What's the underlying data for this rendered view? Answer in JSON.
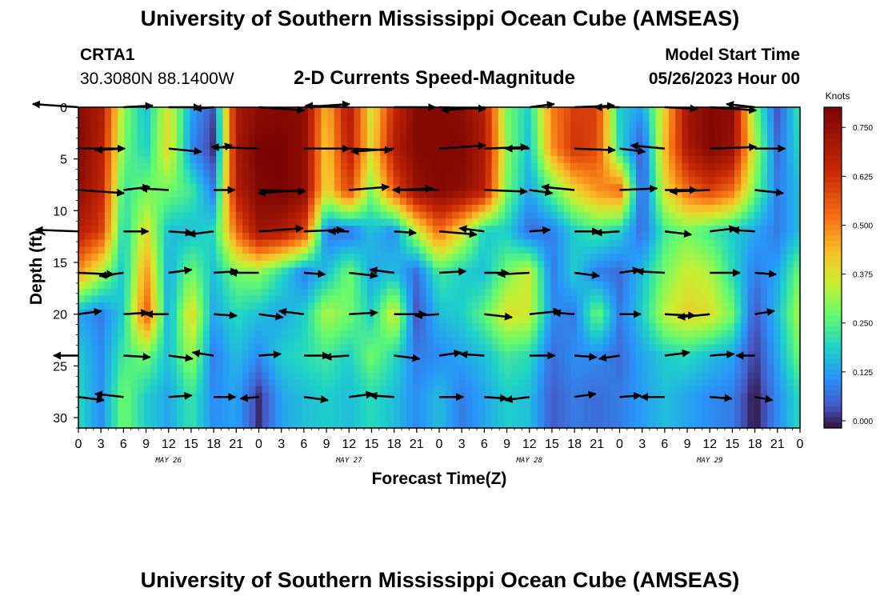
{
  "page": {
    "title_top": "University of Southern Mississippi Ocean Cube (AMSEAS)",
    "title_bottom": "University of Southern Mississippi Ocean Cube (AMSEAS)",
    "station_id": "CRTA1",
    "station_coords": "30.3080N  88.1400W",
    "plot_title": "2-D Currents Speed-Magnitude",
    "model_start_label": "Model Start Time",
    "model_start_value": "05/26/2023 Hour 00"
  },
  "chart_data": {
    "type": "heatmap",
    "title": "2-D Currents Speed-Magnitude",
    "xlabel": "Forecast Time(Z)",
    "ylabel": "Depth (ft)",
    "colorbar_label": "Knots",
    "x_hours_range": [
      0,
      96
    ],
    "y_range": [
      0,
      31
    ],
    "y_ticks": [
      0,
      5,
      10,
      15,
      20,
      25,
      30
    ],
    "x_tick_labels": [
      "0",
      "3",
      "6",
      "9",
      "12",
      "15",
      "18",
      "21",
      "0",
      "3",
      "6",
      "9",
      "12",
      "15",
      "18",
      "21",
      "0",
      "3",
      "6",
      "9",
      "12",
      "15",
      "18",
      "21",
      "0",
      "3",
      "6",
      "9",
      "12",
      "15",
      "18",
      "21",
      "0"
    ],
    "date_labels": [
      {
        "text": "MAY 26",
        "hour": 12
      },
      {
        "text": "MAY 27",
        "hour": 36
      },
      {
        "text": "MAY 28",
        "hour": 60
      },
      {
        "text": "MAY 29",
        "hour": 84
      }
    ],
    "colorbar_ticks": [
      {
        "value": 0.0,
        "label": "0.000"
      },
      {
        "value": 0.125,
        "label": "0.125"
      },
      {
        "value": 0.25,
        "label": "0.250"
      },
      {
        "value": 0.375,
        "label": "0.375"
      },
      {
        "value": 0.5,
        "label": "0.500"
      },
      {
        "value": 0.625,
        "label": "0.625"
      },
      {
        "value": 0.75,
        "label": "0.750"
      }
    ],
    "color_range": [
      0,
      0.82
    ],
    "depth_levels": [
      0,
      4,
      8,
      12,
      16,
      20,
      24,
      28
    ],
    "hour_columns": [
      0,
      3,
      6,
      9,
      12,
      15,
      18,
      21,
      24,
      27,
      30,
      33,
      36,
      39,
      42,
      45,
      48,
      51,
      54,
      57,
      60,
      63,
      66,
      69,
      72,
      75,
      78,
      81,
      84,
      87,
      90,
      93,
      96
    ],
    "speed_grid": [
      [
        0.78,
        0.72,
        0.32,
        0.18,
        0.4,
        0.15,
        0.05,
        0.72,
        0.78,
        0.8,
        0.78,
        0.45,
        0.72,
        0.38,
        0.66,
        0.8,
        0.8,
        0.78,
        0.7,
        0.3,
        0.2,
        0.52,
        0.62,
        0.62,
        0.2,
        0.14,
        0.42,
        0.74,
        0.8,
        0.78,
        0.3,
        0.05,
        0.25
      ],
      [
        0.8,
        0.7,
        0.3,
        0.2,
        0.42,
        0.12,
        0.02,
        0.72,
        0.82,
        0.82,
        0.78,
        0.42,
        0.7,
        0.4,
        0.7,
        0.8,
        0.8,
        0.8,
        0.72,
        0.32,
        0.18,
        0.5,
        0.64,
        0.6,
        0.22,
        0.05,
        0.45,
        0.72,
        0.8,
        0.76,
        0.35,
        0.08,
        0.22
      ],
      [
        0.78,
        0.68,
        0.24,
        0.3,
        0.3,
        0.25,
        0.1,
        0.7,
        0.8,
        0.82,
        0.78,
        0.4,
        0.62,
        0.3,
        0.58,
        0.76,
        0.8,
        0.78,
        0.7,
        0.3,
        0.15,
        0.28,
        0.42,
        0.5,
        0.55,
        0.05,
        0.4,
        0.55,
        0.62,
        0.55,
        0.3,
        0.1,
        0.18
      ],
      [
        0.7,
        0.62,
        0.2,
        0.4,
        0.18,
        0.18,
        0.22,
        0.55,
        0.74,
        0.72,
        0.62,
        0.1,
        0.08,
        0.18,
        0.12,
        0.36,
        0.55,
        0.4,
        0.2,
        0.2,
        0.08,
        0.1,
        0.2,
        0.25,
        0.2,
        0.08,
        0.25,
        0.3,
        0.25,
        0.2,
        0.15,
        0.1,
        0.18
      ],
      [
        0.5,
        0.35,
        0.18,
        0.5,
        0.15,
        0.3,
        0.18,
        0.3,
        0.32,
        0.22,
        0.1,
        0.18,
        0.3,
        0.15,
        0.18,
        0.08,
        0.25,
        0.2,
        0.18,
        0.3,
        0.38,
        0.1,
        0.2,
        0.1,
        0.08,
        0.18,
        0.3,
        0.38,
        0.35,
        0.22,
        0.1,
        0.15,
        0.3
      ],
      [
        0.15,
        0.1,
        0.2,
        0.58,
        0.15,
        0.42,
        0.15,
        0.22,
        0.18,
        0.15,
        0.2,
        0.35,
        0.3,
        0.2,
        0.4,
        0.05,
        0.18,
        0.2,
        0.28,
        0.4,
        0.38,
        0.12,
        0.1,
        0.3,
        0.1,
        0.2,
        0.36,
        0.42,
        0.4,
        0.3,
        0.05,
        0.18,
        0.35
      ],
      [
        0.2,
        0.12,
        0.25,
        0.3,
        0.18,
        0.34,
        0.1,
        0.18,
        0.12,
        0.2,
        0.22,
        0.25,
        0.2,
        0.3,
        0.22,
        0.1,
        0.12,
        0.15,
        0.18,
        0.25,
        0.22,
        0.08,
        0.12,
        0.12,
        0.08,
        0.15,
        0.2,
        0.22,
        0.18,
        0.15,
        0.03,
        0.15,
        0.3
      ],
      [
        0.22,
        0.12,
        0.3,
        0.2,
        0.15,
        0.24,
        0.12,
        0.15,
        0.02,
        0.15,
        0.18,
        0.2,
        0.18,
        0.22,
        0.18,
        0.12,
        0.18,
        0.1,
        0.15,
        0.2,
        0.18,
        0.06,
        0.1,
        0.08,
        0.1,
        0.14,
        0.18,
        0.15,
        0.12,
        0.1,
        0.0,
        0.12,
        0.22
      ]
    ]
  }
}
